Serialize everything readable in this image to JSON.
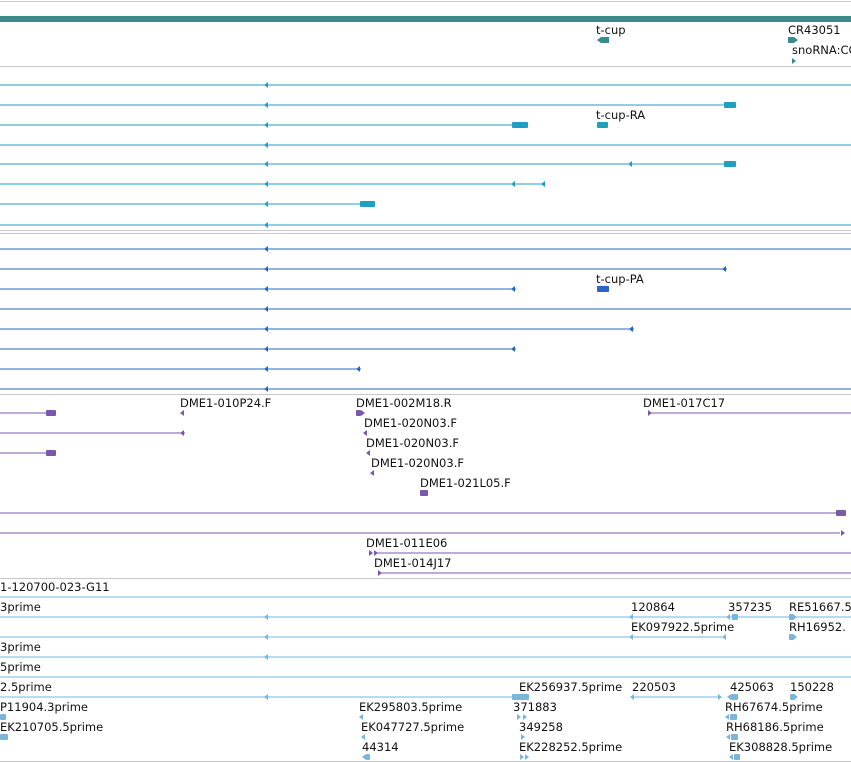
{
  "colors": {
    "gene": "#3a8c8c",
    "mrna": "#1fa0c0",
    "protein": "#2a67c0",
    "clone": "#7a58b0",
    "est": "#7ab6dc",
    "divider": "#c8c8c8"
  },
  "tracks": [
    {
      "id": "gene",
      "color": "#3a8c8c",
      "items": [
        {
          "label": "t-cup"
        },
        {
          "label": "CR43051"
        },
        {
          "label": "snoRNA:CG"
        }
      ]
    },
    {
      "id": "mrna",
      "color": "#1fa0c0",
      "items": [
        {
          "label": "t-cup-RA"
        }
      ]
    },
    {
      "id": "protein",
      "color": "#2a67c0",
      "items": [
        {
          "label": "t-cup-PA"
        }
      ]
    },
    {
      "id": "clone",
      "color": "#7a58b0",
      "items": [
        {
          "label": "DME1-010P24.F"
        },
        {
          "label": "DME1-002M18.R"
        },
        {
          "label": "DME1-017C17"
        },
        {
          "label": "DME1-020N03.F"
        },
        {
          "label": "DME1-020N03.F"
        },
        {
          "label": "DME1-020N03.F"
        },
        {
          "label": "DME1-021L05.F"
        },
        {
          "label": "DME1-011E06"
        },
        {
          "label": "DME1-014J17"
        }
      ]
    },
    {
      "id": "est",
      "color": "#7ab6dc",
      "items": [
        {
          "label": "1-120700-023-G11"
        },
        {
          "label": "3prime"
        },
        {
          "label": "120864"
        },
        {
          "label": "357235"
        },
        {
          "label": "RE51667.5"
        },
        {
          "label": "EK097922.5prime"
        },
        {
          "label": "RH16952."
        },
        {
          "label": "3prime"
        },
        {
          "label": "5prime"
        },
        {
          "label": "2.5prime"
        },
        {
          "label": "EK256937.5prime"
        },
        {
          "label": "220503"
        },
        {
          "label": "425063"
        },
        {
          "label": "150228"
        },
        {
          "label": "P11904.3prime"
        },
        {
          "label": "EK295803.5prime"
        },
        {
          "label": "371883"
        },
        {
          "label": "RH67674.5prime"
        },
        {
          "label": "EK210705.5prime"
        },
        {
          "label": "EK047727.5prime"
        },
        {
          "label": "349258"
        },
        {
          "label": "RH68186.5prime"
        },
        {
          "label": "44314"
        },
        {
          "label": "EK228252.5prime"
        },
        {
          "label": "EK308828.5prime"
        }
      ]
    }
  ]
}
